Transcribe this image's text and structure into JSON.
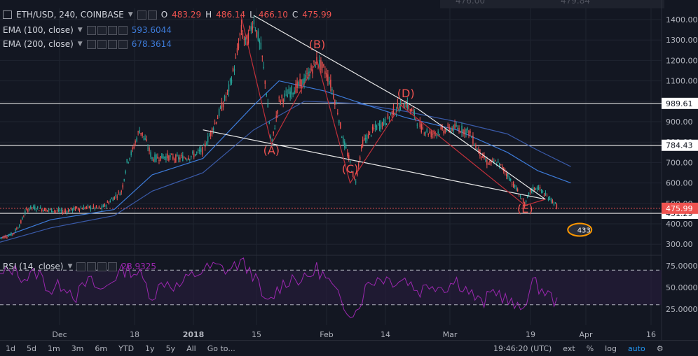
{
  "header": {
    "symbol": "ETH/USD, 240, COINBASE",
    "o_label": "O",
    "o_value": "483.29",
    "h_label": "H",
    "h_value": "486.14",
    "l_label": "L",
    "l_value": "466.10",
    "c_label": "C",
    "c_value": "475.99",
    "ema100_label": "EMA (100, close)",
    "ema100_value": "593.6044",
    "ema200_label": "EMA (200, close)",
    "ema200_value": "678.3614",
    "rsi_label": "RSI (14, close)",
    "rsi_value": "28.9325",
    "top_partial_left": "476.00",
    "top_partial_right": "479.84"
  },
  "colors": {
    "background": "#131722",
    "up": "#26a69a",
    "down": "#ef5350",
    "ema100": "#3d7bd9",
    "ema200": "#3a5aa8",
    "rsi": "#9c27b0",
    "price_tag": "#ef5350"
  },
  "chart_data": [
    {
      "type": "candlestick",
      "title": "ETH/USD, 240, COINBASE",
      "ylim": [
        220,
        1470
      ],
      "y_ticks": [
        "1400.00",
        "1300.00",
        "1200.00",
        "1100.00",
        "1000.00",
        "900.00",
        "800.00",
        "700.00",
        "600.00",
        "500.00",
        "400.00",
        "300.00"
      ],
      "x_ticks": [
        "Dec",
        "18",
        "2018",
        "15",
        "Feb",
        "14",
        "Mar",
        "19",
        "Apr",
        "16"
      ],
      "horizontal_levels": [
        {
          "label": "989.61",
          "value": 989.61
        },
        {
          "label": "784.43",
          "value": 784.43
        },
        {
          "label": "451.29",
          "value": 451.29
        }
      ],
      "last_price": {
        "label": "475.99",
        "value": 475.99
      },
      "price_series": [
        {
          "t": 0,
          "v": 330
        },
        {
          "t": 5,
          "v": 350
        },
        {
          "t": 8,
          "v": 400
        },
        {
          "t": 10,
          "v": 460
        },
        {
          "t": 12,
          "v": 480
        },
        {
          "t": 18,
          "v": 470
        },
        {
          "t": 25,
          "v": 460
        },
        {
          "t": 30,
          "v": 475
        },
        {
          "t": 35,
          "v": 480
        },
        {
          "t": 40,
          "v": 475
        },
        {
          "t": 45,
          "v": 530
        },
        {
          "t": 48,
          "v": 560
        },
        {
          "t": 50,
          "v": 700
        },
        {
          "t": 52,
          "v": 750
        },
        {
          "t": 55,
          "v": 860
        },
        {
          "t": 57,
          "v": 820
        },
        {
          "t": 60,
          "v": 720
        },
        {
          "t": 65,
          "v": 730
        },
        {
          "t": 70,
          "v": 720
        },
        {
          "t": 75,
          "v": 730
        },
        {
          "t": 80,
          "v": 760
        },
        {
          "t": 85,
          "v": 900
        },
        {
          "t": 90,
          "v": 1050
        },
        {
          "t": 93,
          "v": 1200
        },
        {
          "t": 95,
          "v": 1350
        },
        {
          "t": 97,
          "v": 1280
        },
        {
          "t": 100,
          "v": 1400
        },
        {
          "t": 103,
          "v": 1250
        },
        {
          "t": 105,
          "v": 1050
        },
        {
          "t": 107,
          "v": 780
        },
        {
          "t": 110,
          "v": 1000
        },
        {
          "t": 115,
          "v": 1050
        },
        {
          "t": 120,
          "v": 1100
        },
        {
          "t": 125,
          "v": 1200
        },
        {
          "t": 128,
          "v": 1150
        },
        {
          "t": 130,
          "v": 1100
        },
        {
          "t": 133,
          "v": 960
        },
        {
          "t": 135,
          "v": 820
        },
        {
          "t": 138,
          "v": 700
        },
        {
          "t": 140,
          "v": 600
        },
        {
          "t": 143,
          "v": 800
        },
        {
          "t": 148,
          "v": 870
        },
        {
          "t": 152,
          "v": 900
        },
        {
          "t": 155,
          "v": 950
        },
        {
          "t": 158,
          "v": 980
        },
        {
          "t": 160,
          "v": 990
        },
        {
          "t": 163,
          "v": 940
        },
        {
          "t": 166,
          "v": 870
        },
        {
          "t": 170,
          "v": 840
        },
        {
          "t": 175,
          "v": 860
        },
        {
          "t": 180,
          "v": 870
        },
        {
          "t": 185,
          "v": 850
        },
        {
          "t": 188,
          "v": 770
        },
        {
          "t": 192,
          "v": 700
        },
        {
          "t": 196,
          "v": 700
        },
        {
          "t": 199,
          "v": 660
        },
        {
          "t": 202,
          "v": 600
        },
        {
          "t": 205,
          "v": 540
        },
        {
          "t": 207,
          "v": 490
        },
        {
          "t": 209,
          "v": 560
        },
        {
          "t": 212,
          "v": 580
        },
        {
          "t": 215,
          "v": 540
        },
        {
          "t": 218,
          "v": 510
        },
        {
          "t": 220,
          "v": 476
        }
      ],
      "ema100": [
        {
          "t": 0,
          "v": 330
        },
        {
          "t": 20,
          "v": 420
        },
        {
          "t": 45,
          "v": 470
        },
        {
          "t": 60,
          "v": 640
        },
        {
          "t": 80,
          "v": 720
        },
        {
          "t": 100,
          "v": 980
        },
        {
          "t": 110,
          "v": 1100
        },
        {
          "t": 128,
          "v": 1050
        },
        {
          "t": 140,
          "v": 1000
        },
        {
          "t": 160,
          "v": 920
        },
        {
          "t": 180,
          "v": 860
        },
        {
          "t": 200,
          "v": 750
        },
        {
          "t": 212,
          "v": 660
        },
        {
          "t": 225,
          "v": 600
        }
      ],
      "ema200": [
        {
          "t": 0,
          "v": 310
        },
        {
          "t": 20,
          "v": 380
        },
        {
          "t": 45,
          "v": 440
        },
        {
          "t": 60,
          "v": 560
        },
        {
          "t": 80,
          "v": 650
        },
        {
          "t": 100,
          "v": 860
        },
        {
          "t": 120,
          "v": 1000
        },
        {
          "t": 140,
          "v": 990
        },
        {
          "t": 160,
          "v": 950
        },
        {
          "t": 180,
          "v": 900
        },
        {
          "t": 200,
          "v": 840
        },
        {
          "t": 212,
          "v": 760
        },
        {
          "t": 225,
          "v": 680
        }
      ],
      "trendlines": [
        {
          "from": {
            "t": 100,
            "v": 1420
          },
          "to": {
            "t": 165,
            "v": 960
          }
        },
        {
          "from": {
            "t": 80,
            "v": 860
          },
          "to": {
            "t": 215,
            "v": 520
          }
        },
        {
          "from": {
            "t": 165,
            "v": 960
          },
          "to": {
            "t": 215,
            "v": 520
          }
        }
      ],
      "wave_path": [
        {
          "t": 95,
          "v": 1420
        },
        {
          "t": 107,
          "v": 790
        },
        {
          "t": 125,
          "v": 1200
        },
        {
          "t": 138,
          "v": 600
        },
        {
          "t": 158,
          "v": 980
        },
        {
          "t": 207,
          "v": 490
        },
        {
          "t": 215,
          "v": 520
        }
      ],
      "wave_labels": [
        {
          "text": "(A)",
          "t": 107,
          "v": 740
        },
        {
          "text": "(B)",
          "t": 125,
          "v": 1260
        },
        {
          "text": "(C)",
          "t": 138,
          "v": 650
        },
        {
          "text": "(D)",
          "t": 160,
          "v": 1020
        },
        {
          "text": "(E)",
          "t": 207,
          "v": 455
        }
      ],
      "badge": {
        "text": "433",
        "t": 202,
        "v": 330
      }
    },
    {
      "type": "line",
      "title": "RSI (14, close)",
      "ylim": [
        14,
        86
      ],
      "y_ticks": [
        "75.0000",
        "50.0000",
        "25.0000"
      ],
      "bands": [
        70,
        30
      ],
      "series": [
        {
          "t": 0,
          "v": 62
        },
        {
          "t": 5,
          "v": 72
        },
        {
          "t": 10,
          "v": 60
        },
        {
          "t": 15,
          "v": 68
        },
        {
          "t": 20,
          "v": 45
        },
        {
          "t": 25,
          "v": 55
        },
        {
          "t": 30,
          "v": 40
        },
        {
          "t": 35,
          "v": 58
        },
        {
          "t": 40,
          "v": 45
        },
        {
          "t": 45,
          "v": 62
        },
        {
          "t": 50,
          "v": 72
        },
        {
          "t": 55,
          "v": 65
        },
        {
          "t": 60,
          "v": 40
        },
        {
          "t": 65,
          "v": 58
        },
        {
          "t": 70,
          "v": 50
        },
        {
          "t": 75,
          "v": 62
        },
        {
          "t": 80,
          "v": 70
        },
        {
          "t": 85,
          "v": 74
        },
        {
          "t": 90,
          "v": 70
        },
        {
          "t": 95,
          "v": 79
        },
        {
          "t": 100,
          "v": 65
        },
        {
          "t": 105,
          "v": 28
        },
        {
          "t": 110,
          "v": 50
        },
        {
          "t": 115,
          "v": 62
        },
        {
          "t": 120,
          "v": 58
        },
        {
          "t": 125,
          "v": 72
        },
        {
          "t": 130,
          "v": 55
        },
        {
          "t": 135,
          "v": 30
        },
        {
          "t": 140,
          "v": 20
        },
        {
          "t": 145,
          "v": 55
        },
        {
          "t": 150,
          "v": 62
        },
        {
          "t": 155,
          "v": 58
        },
        {
          "t": 160,
          "v": 60
        },
        {
          "t": 165,
          "v": 45
        },
        {
          "t": 170,
          "v": 55
        },
        {
          "t": 175,
          "v": 50
        },
        {
          "t": 180,
          "v": 58
        },
        {
          "t": 185,
          "v": 45
        },
        {
          "t": 190,
          "v": 30
        },
        {
          "t": 195,
          "v": 48
        },
        {
          "t": 200,
          "v": 35
        },
        {
          "t": 205,
          "v": 22
        },
        {
          "t": 210,
          "v": 55
        },
        {
          "t": 215,
          "v": 45
        },
        {
          "t": 220,
          "v": 30
        }
      ]
    }
  ],
  "bottom_bar": {
    "ranges": [
      "1d",
      "5d",
      "1m",
      "3m",
      "6m",
      "YTD",
      "1y",
      "5y",
      "All"
    ],
    "goto": "Go to...",
    "clock": "19:46:20 (UTC)",
    "ext": "ext",
    "pct": "%",
    "log": "log",
    "auto": "auto"
  }
}
